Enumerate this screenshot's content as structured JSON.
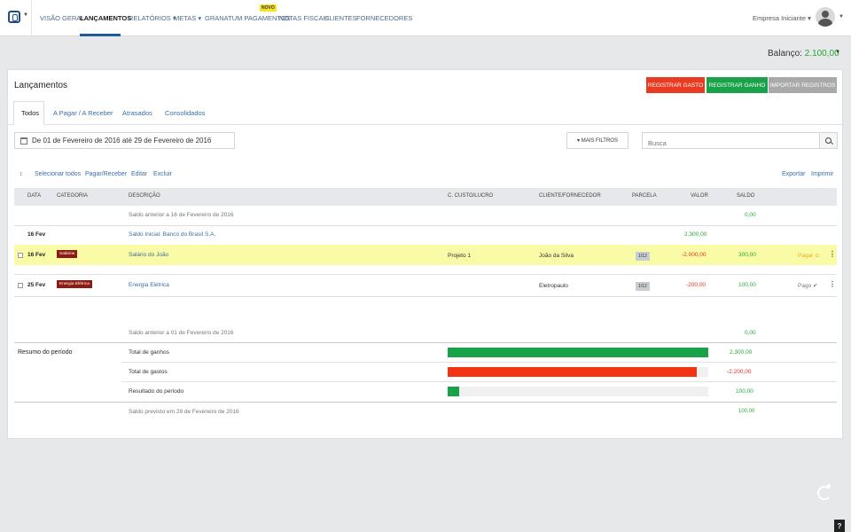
{
  "nav": {
    "items": [
      "VISÃO GERAL",
      "LANÇAMENTOS",
      "RELATÓRIOS ▾",
      "METAS ▾",
      "GRANATUM PAGAMENTOS",
      "NOTAS FISCAIS",
      "CLIENTES",
      "FORNECEDORES"
    ],
    "badge_new": "NOVO",
    "company": "Empresa Iniciante ▾"
  },
  "balance": {
    "label": "Balanço:",
    "value": "2.100,00"
  },
  "page": {
    "title": "Lançamentos",
    "buttons": {
      "gasto": "REGISTRAR GASTO",
      "ganho": "REGISTRAR GANHO",
      "importar": "IMPORTAR REGISTROS"
    },
    "tabs": [
      "Todos",
      "A Pagar / A Receber",
      "Atrasados",
      "Consolidados"
    ],
    "date_range": "De 01 de Fevereiro de 2016 até 29 de Fevereiro de 2016",
    "more_filters": "▾ MAIS FILTROS",
    "search_placeholder": "Busca",
    "actions": [
      "Selecionar todos",
      "Pagar/Receber",
      "Editar",
      "Excluir"
    ],
    "export": "Exportar",
    "print": "Imprimir"
  },
  "table": {
    "headers": [
      "DATA",
      "CATEGORIA",
      "DESCRIÇÃO",
      "C. CUSTO/LUCRO",
      "CLIENTE/FORNECEDOR",
      "PARCELA",
      "VALOR",
      "SALDO"
    ],
    "prev_balance": {
      "label": "Saldo anterior a 16 de Fevereiro de 2016",
      "value": "0,00"
    },
    "rows": [
      {
        "date": "16 Fev",
        "description": "Saldo Inicial: Banco do Brasil S.A.",
        "value": "2.300,00"
      },
      {
        "date": "16 Fev",
        "category": "Salários",
        "description": "Salário do João",
        "cost_center": "Projeto 1",
        "client": "João da Silva",
        "installment": "1/12",
        "value": "-2.000,00",
        "balance": "300,00",
        "status": "Pagar ⊙"
      },
      {
        "date": "25 Fev",
        "category": "Energia Elétrica",
        "description": "Energia Elétrica",
        "client": "Eletropaulo",
        "installment": "1/12",
        "value": "-200,00",
        "balance": "100,00",
        "status": "Pago ✔"
      }
    ],
    "prev_balance_2": {
      "label": "Saldo anterior a 01 de Fevereiro de 2016",
      "value": "0,00"
    }
  },
  "summary": {
    "title": "Resumo do período",
    "items": [
      {
        "label": "Total de ganhos",
        "value": "2.300,00",
        "fill": 1.0,
        "color": "#1aa24a"
      },
      {
        "label": "Total de gastos",
        "value": "-2.200,00",
        "fill": 0.956,
        "color": "#f03414"
      },
      {
        "label": "Resultado do período",
        "value": "100,00",
        "fill": 0.043,
        "color": "#1aa24a"
      }
    ],
    "forecast": {
      "label": "Saldo previsto em 29 de Fevereiro de 2016",
      "value": "100,00"
    }
  },
  "help": "?"
}
